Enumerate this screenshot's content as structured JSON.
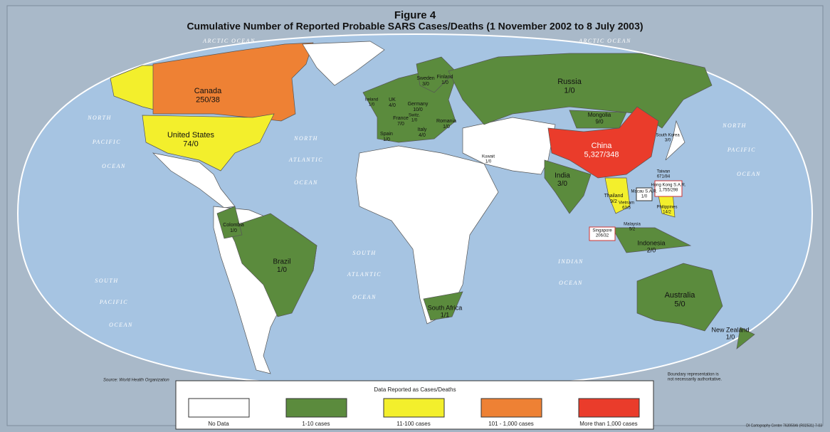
{
  "header": {
    "figure": "Figure 4",
    "title": "Cumulative Number of Reported Probable SARS Cases/Deaths (1 November 2002 to 8 July 2003)"
  },
  "ocean_labels": [
    [
      "ARCTIC OCEAN"
    ],
    [
      "ARCTIC OCEAN"
    ],
    [
      "NORTH",
      "PACIFIC",
      "OCEAN"
    ],
    [
      "NORTH",
      "ATLANTIC",
      "OCEAN"
    ],
    [
      "NORTH",
      "PACIFIC",
      "OCEAN"
    ],
    [
      "SOUTH",
      "PACIFIC",
      "OCEAN"
    ],
    [
      "SOUTH",
      "ATLANTIC",
      "OCEAN"
    ],
    [
      "INDIAN",
      "OCEAN"
    ]
  ],
  "countries": [
    {
      "name": "Canada",
      "value": "250/38"
    },
    {
      "name": "United States",
      "value": "74/0"
    },
    {
      "name": "Russia",
      "value": "1/0"
    },
    {
      "name": "Mongolia",
      "value": "9/0"
    },
    {
      "name": "China",
      "value": "5,327/348"
    },
    {
      "name": "South Korea",
      "value": "3/0"
    },
    {
      "name": "Taiwan",
      "value": "671/84"
    },
    {
      "name": "Hong Kong S.A.R.",
      "value": "1,755/298"
    },
    {
      "name": "Macau S.A.R.",
      "value": "1/0"
    },
    {
      "name": "Philippines",
      "value": "14/2"
    },
    {
      "name": "Vietnam",
      "value": "63/5"
    },
    {
      "name": "Thailand",
      "value": "9/2"
    },
    {
      "name": "Malaysia",
      "value": "5/2"
    },
    {
      "name": "Singapore",
      "value": "206/32"
    },
    {
      "name": "Indonesia",
      "value": "2/0"
    },
    {
      "name": "India",
      "value": "3/0"
    },
    {
      "name": "Australia",
      "value": "5/0"
    },
    {
      "name": "New Zealand",
      "value": "1/0"
    },
    {
      "name": "Kuwait",
      "value": "1/0"
    },
    {
      "name": "South Africa",
      "value": "1/1"
    },
    {
      "name": "Brazil",
      "value": "1/0"
    },
    {
      "name": "Colombia",
      "value": "1/0"
    },
    {
      "name": "Ireland",
      "value": "1/0"
    },
    {
      "name": "UK",
      "value": "4/0"
    },
    {
      "name": "Germany",
      "value": "10/0"
    },
    {
      "name": "France",
      "value": "7/0"
    },
    {
      "name": "Spain",
      "value": "1/0"
    },
    {
      "name": "Switz.",
      "value": "1/0"
    },
    {
      "name": "Italy",
      "value": "4/0"
    },
    {
      "name": "Sweden",
      "value": "3/0"
    },
    {
      "name": "Finland",
      "value": "1/0"
    },
    {
      "name": "Romania",
      "value": "1/0"
    }
  ],
  "source": "Source: World Health Organization",
  "disclaimer": [
    "Boundary representation is",
    "not necessarily authoritative."
  ],
  "credit": "DI Cartography Center 763959AI (R02531) 7-03",
  "legend": {
    "title": "Data Reported as Cases/Deaths",
    "items": [
      {
        "label": "No Data",
        "color": "#ffffff"
      },
      {
        "label": "1-10 cases",
        "color": "#5b8b3d"
      },
      {
        "label": "11-100 cases",
        "color": "#f3ef2c"
      },
      {
        "label": "101 - 1,000 cases",
        "color": "#ee8134"
      },
      {
        "label": "More than 1,000 cases",
        "color": "#ea3c2b"
      }
    ]
  }
}
